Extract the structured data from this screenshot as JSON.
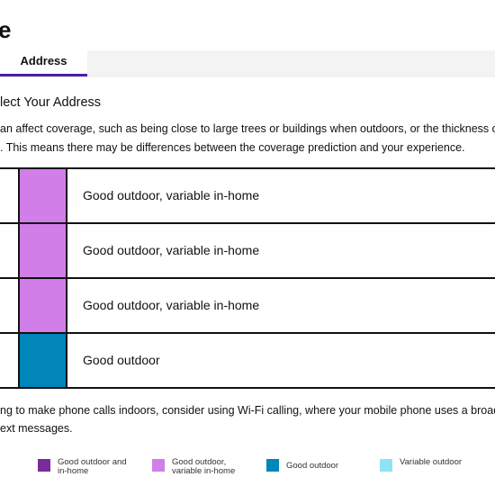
{
  "header": {
    "title": "e",
    "tab": "Address"
  },
  "section": {
    "heading": "lect Your Address",
    "intro": [
      "an affect coverage, such as being close to large trees or buildings when outdoors, or the thickness of w",
      ". This means there may be differences between the coverage prediction and your experience."
    ]
  },
  "table": {
    "rows": [
      {
        "color": "#d27ee8",
        "label": "Good outdoor, variable in-home"
      },
      {
        "color": "#d27ee8",
        "label": "Good outdoor, variable in-home"
      },
      {
        "color": "#d27ee8",
        "label": "Good outdoor, variable in-home"
      },
      {
        "color": "#0086b8",
        "label": "Good outdoor"
      }
    ]
  },
  "note": [
    "ng to make phone calls indoors, consider using Wi-Fi calling, where your mobile phone uses a broadba",
    "ext messages."
  ],
  "legend": [
    {
      "color": "#7b2a9a",
      "label": "Good outdoor and in-home"
    },
    {
      "color": "#d27ee8",
      "label": "Good outdoor, variable in-home"
    },
    {
      "color": "#0086b8",
      "label": "Good outdoor"
    },
    {
      "color": "#8ee3f5",
      "label": "Variable outdoor"
    }
  ]
}
